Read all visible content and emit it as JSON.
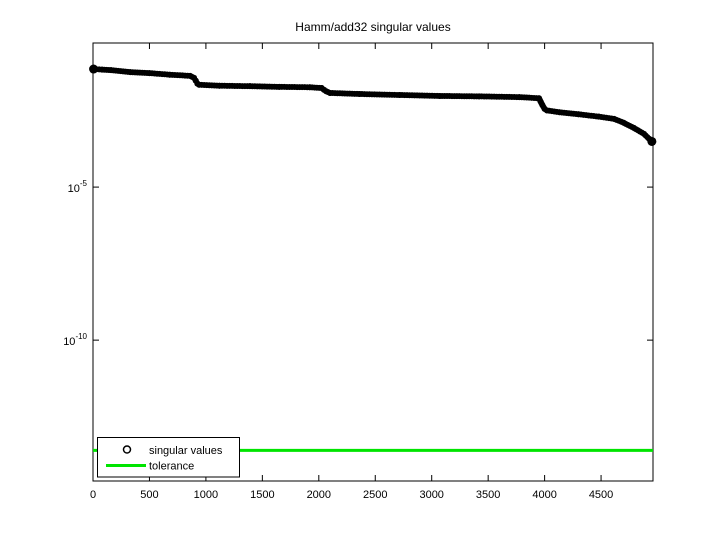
{
  "figure": {
    "background": "#ffffff",
    "axis_color": "#000000"
  },
  "chart_data": {
    "type": "scatter",
    "title": "Hamm/add32 singular values",
    "xlabel": "",
    "ylabel": "",
    "grid": false,
    "yscale": "log",
    "xlim": [
      0,
      4960
    ],
    "ylim": [
      2.5e-15,
      0.51
    ],
    "x_ticks": [
      0,
      500,
      1000,
      1500,
      2000,
      2500,
      3000,
      3500,
      4000,
      4500
    ],
    "y_ticks": [
      {
        "value": 1e-05,
        "base": "10",
        "exponent": "-5"
      },
      {
        "value": 1e-10,
        "base": "10",
        "exponent": "-10"
      }
    ],
    "legend": {
      "position": "bottom-left",
      "entries": [
        {
          "label": "singular values",
          "marker": "circle",
          "color": "#000000"
        },
        {
          "label": "tolerance",
          "marker": "line",
          "color": "#00e400"
        }
      ]
    },
    "series": [
      {
        "name": "singular values",
        "type": "scatter",
        "marker": "o",
        "color": "#000000",
        "points": [
          [
            5,
            0.072
          ],
          [
            80,
            0.069
          ],
          [
            160,
            0.066
          ],
          [
            330,
            0.057
          ],
          [
            500,
            0.053
          ],
          [
            680,
            0.047
          ],
          [
            860,
            0.043
          ],
          [
            895,
            0.037
          ],
          [
            910,
            0.03
          ],
          [
            925,
            0.024
          ],
          [
            940,
            0.022
          ],
          [
            1120,
            0.0205
          ],
          [
            1390,
            0.0198
          ],
          [
            1650,
            0.0188
          ],
          [
            1920,
            0.0183
          ],
          [
            2025,
            0.0172
          ],
          [
            2045,
            0.0152
          ],
          [
            2065,
            0.0135
          ],
          [
            2100,
            0.0119
          ],
          [
            2360,
            0.011
          ],
          [
            2715,
            0.0102
          ],
          [
            3070,
            0.0095
          ],
          [
            3420,
            0.0092
          ],
          [
            3776,
            0.0087
          ],
          [
            3950,
            0.008
          ],
          [
            3965,
            0.0062
          ],
          [
            3980,
            0.0048
          ],
          [
            4000,
            0.0036
          ],
          [
            4020,
            0.0032
          ],
          [
            4130,
            0.0028
          ],
          [
            4300,
            0.0024
          ],
          [
            4480,
            0.002
          ],
          [
            4615,
            0.0017
          ],
          [
            4700,
            0.00126
          ],
          [
            4790,
            0.00086
          ],
          [
            4880,
            0.00055
          ],
          [
            4925,
            0.00038
          ],
          [
            4950,
            0.00031
          ]
        ]
      },
      {
        "name": "tolerance",
        "type": "hline",
        "color": "#00e400",
        "value": 2.5e-14
      }
    ]
  }
}
